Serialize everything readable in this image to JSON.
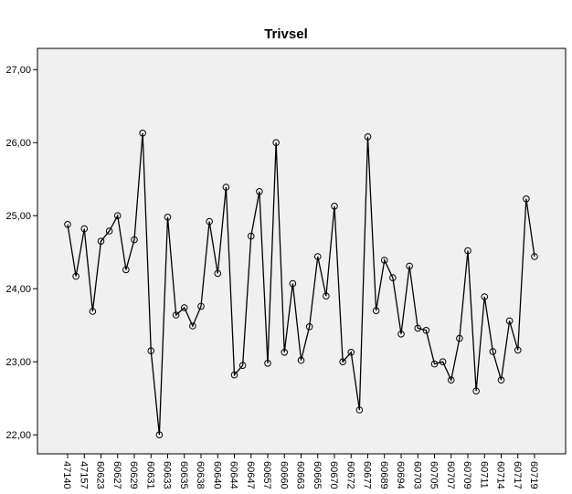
{
  "chart_data": {
    "type": "line",
    "title": "Trivsel",
    "categories": [
      "47140",
      null,
      "47157",
      null,
      "60623",
      null,
      "60627",
      null,
      "60629",
      null,
      "60631",
      null,
      "60633",
      null,
      "60635",
      null,
      "60638",
      null,
      "60640",
      null,
      "60644",
      null,
      "60647",
      null,
      "60657",
      null,
      "60660",
      null,
      "60663",
      null,
      "60665",
      null,
      "60670",
      null,
      "60672",
      null,
      "60677",
      null,
      "60689",
      null,
      "60694",
      null,
      "60703",
      null,
      "60705",
      null,
      "60707",
      null,
      "60709",
      null,
      "60711",
      null,
      "60714",
      null,
      "60717",
      null,
      "60719"
    ],
    "values": [
      24.88,
      24.17,
      24.82,
      23.69,
      24.65,
      24.79,
      25.0,
      24.26,
      24.67,
      26.13,
      23.15,
      22.0,
      24.98,
      23.64,
      23.74,
      23.49,
      23.76,
      24.92,
      24.21,
      25.39,
      22.82,
      22.95,
      24.72,
      25.33,
      22.98,
      26.0,
      23.13,
      24.07,
      23.02,
      23.48,
      24.44,
      23.9,
      25.13,
      23.0,
      23.13,
      22.34,
      26.08,
      23.7,
      24.39,
      24.15,
      23.38,
      24.31,
      23.46,
      23.43,
      22.97,
      23.0,
      22.75,
      23.32,
      24.52,
      22.6,
      23.89,
      23.14,
      22.75,
      23.56,
      23.16,
      25.23,
      24.44
    ],
    "color": "#000000",
    "ylim": [
      21.74,
      27.29
    ],
    "yticks": [
      {
        "value": 22,
        "label": "22,00"
      },
      {
        "value": 23,
        "label": "23,00"
      },
      {
        "value": 24,
        "label": "24,00"
      },
      {
        "value": 25,
        "label": "25,00"
      },
      {
        "value": 26,
        "label": "26,00"
      },
      {
        "value": 27,
        "label": "27,00"
      }
    ]
  }
}
